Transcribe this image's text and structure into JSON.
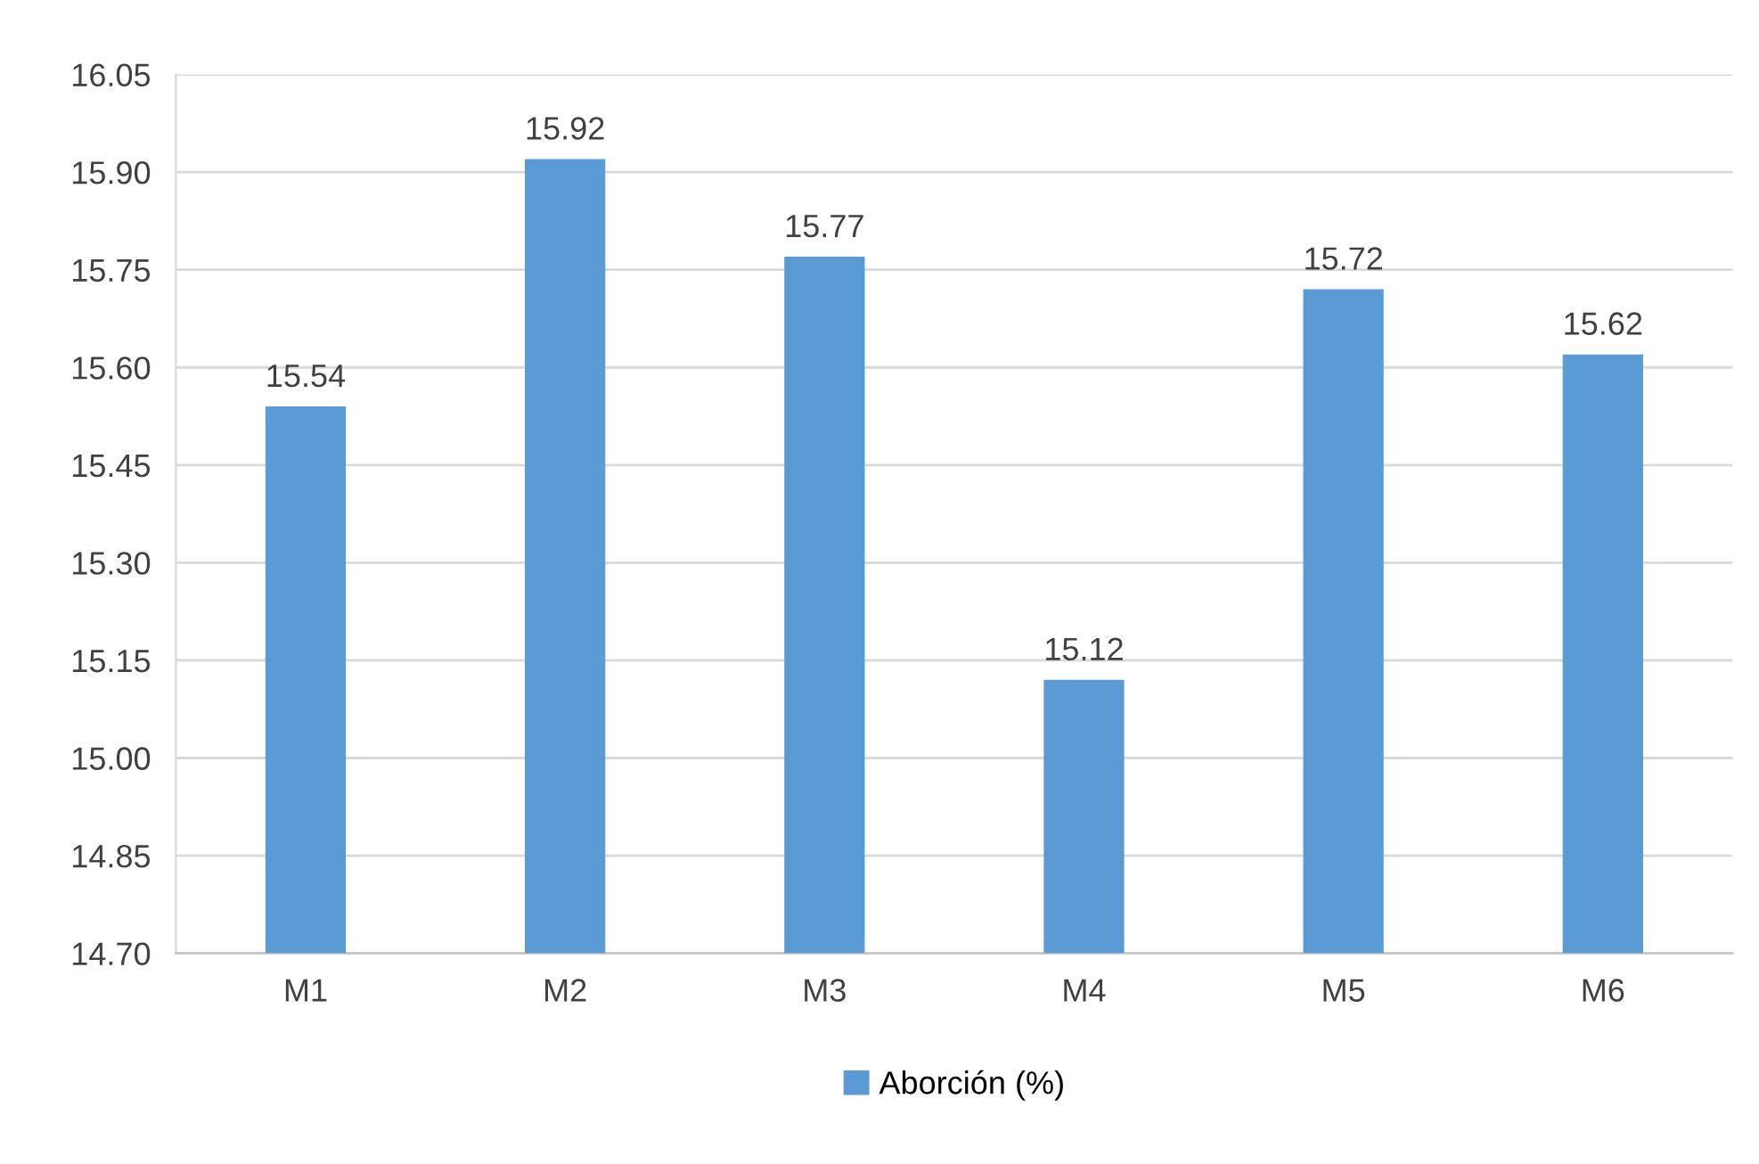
{
  "chart_data": {
    "type": "bar",
    "categories": [
      "M1",
      "M2",
      "M3",
      "M4",
      "M5",
      "M6"
    ],
    "series": [
      {
        "name": "Aborción (%)",
        "color": "#5b9bd5",
        "values": [
          15.54,
          15.92,
          15.77,
          15.12,
          15.72,
          15.62
        ]
      }
    ],
    "ylim": [
      14.7,
      16.05
    ],
    "yticks": [
      {
        "value": 14.7,
        "label": "14.70"
      },
      {
        "value": 14.85,
        "label": "14.85"
      },
      {
        "value": 15.0,
        "label": "15.00"
      },
      {
        "value": 15.15,
        "label": "15.15"
      },
      {
        "value": 15.3,
        "label": "15.30"
      },
      {
        "value": 15.45,
        "label": "15.45"
      },
      {
        "value": 15.6,
        "label": "15.60"
      },
      {
        "value": 15.75,
        "label": "15.75"
      },
      {
        "value": 15.9,
        "label": "15.90"
      },
      {
        "value": 16.05,
        "label": "16.05"
      }
    ],
    "grid": "y",
    "legend": "bottom",
    "data_labels": true
  }
}
